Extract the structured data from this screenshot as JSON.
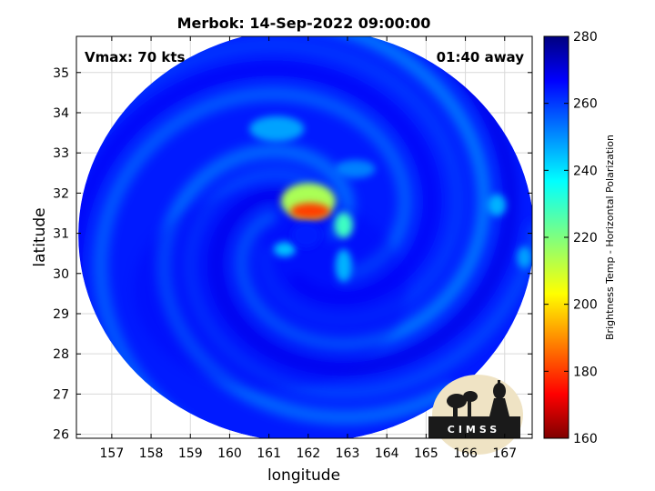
{
  "chart_data": {
    "type": "heatmap",
    "title": "Merbok: 14-Sep-2022 09:00:00",
    "xlabel": "longitude",
    "ylabel": "latitude",
    "xlim": [
      156.1,
      167.7
    ],
    "ylim": [
      25.9,
      35.9
    ],
    "x_ticks": [
      157,
      158,
      159,
      160,
      161,
      162,
      163,
      164,
      165,
      166,
      167
    ],
    "y_ticks": [
      26,
      27,
      28,
      29,
      30,
      31,
      32,
      33,
      34,
      35
    ],
    "grid": true,
    "annotations": {
      "vmax": "Vmax: 70 kts",
      "time_away": "01:40 away"
    },
    "storm_center": {
      "lon": 162.0,
      "lat": 31.0
    },
    "swath": {
      "center_lon": 161.95,
      "center_lat": 30.95,
      "radius_lon": 5.8,
      "radius_lat": 5.15
    },
    "colorbar": {
      "label": "Brightness Temp - Horizontal Polarization",
      "range": [
        160,
        280
      ],
      "ticks": [
        160,
        180,
        200,
        220,
        240,
        260,
        280
      ],
      "colormap": "jet"
    },
    "features": [
      {
        "name": "eyewall-warm-core",
        "lon": 162.05,
        "lat": 31.55,
        "value": 182
      },
      {
        "name": "eyewall-north-ring",
        "lon": 162.0,
        "lat": 31.8,
        "value": 215
      },
      {
        "name": "eyewall-east",
        "lon": 162.9,
        "lat": 31.2,
        "value": 228
      },
      {
        "name": "eye",
        "lon": 161.95,
        "lat": 30.95,
        "value": 262
      },
      {
        "name": "inner-band-west",
        "lon": 161.4,
        "lat": 30.6,
        "value": 242
      },
      {
        "name": "inner-band-south",
        "lon": 162.9,
        "lat": 30.2,
        "value": 244
      },
      {
        "name": "outer-band-north",
        "lon": 161.2,
        "lat": 33.6,
        "value": 246
      },
      {
        "name": "outer-band-ne",
        "lon": 163.2,
        "lat": 32.6,
        "value": 250
      },
      {
        "name": "outer-band-east",
        "lon": 166.8,
        "lat": 31.7,
        "value": 244
      },
      {
        "name": "outer-band-far-east",
        "lon": 167.5,
        "lat": 30.4,
        "value": 246
      }
    ]
  },
  "logo": {
    "text": "CIMSS"
  },
  "colors": {
    "background": "#ffffff",
    "axes": "#000000",
    "grid": "#d9d9d9"
  }
}
